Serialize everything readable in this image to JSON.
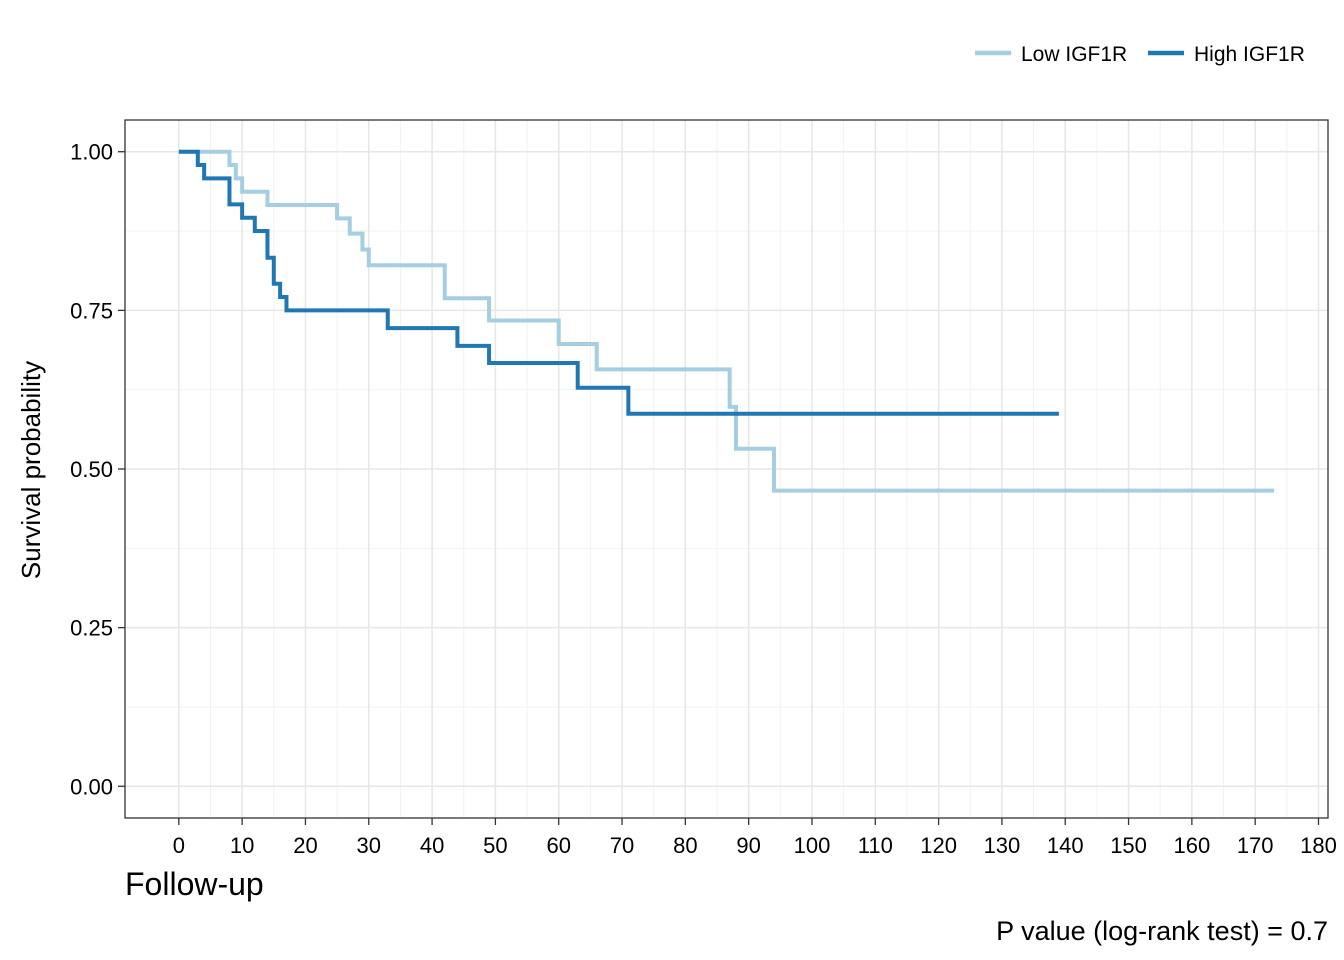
{
  "chart_data": {
    "type": "line",
    "subtype": "kaplan-meier step",
    "xlabel": "Follow-up",
    "ylabel": "Survival probability",
    "xlim": [
      -8.5,
      181.5
    ],
    "ylim": [
      -0.05,
      1.05
    ],
    "x_ticks": [
      0,
      10,
      20,
      30,
      40,
      50,
      60,
      70,
      80,
      90,
      100,
      110,
      120,
      130,
      140,
      150,
      160,
      170,
      180
    ],
    "x_tick_labels": [
      "0",
      "10",
      "20",
      "30",
      "40",
      "50",
      "60",
      "70",
      "80",
      "90",
      "100",
      "110",
      "120",
      "130",
      "140",
      "150",
      "160",
      "170",
      "180"
    ],
    "y_ticks": [
      0,
      0.25,
      0.5,
      0.75,
      1.0
    ],
    "y_tick_labels": [
      "0.00",
      "0.25",
      "0.50",
      "0.75",
      "1.00"
    ],
    "grid": true,
    "legend_position": "top-right",
    "annotation": "P value (log-rank test) = 0.7",
    "series": [
      {
        "name": "Low IGF1R",
        "color": "#a6cee3",
        "x": [
          0,
          8,
          9,
          10,
          14,
          25,
          27,
          29,
          30,
          42,
          49,
          60,
          66,
          87,
          88,
          94,
          173
        ],
        "y": [
          1.0,
          0.979,
          0.958,
          0.937,
          0.916,
          0.895,
          0.871,
          0.846,
          0.821,
          0.769,
          0.734,
          0.697,
          0.657,
          0.598,
          0.532,
          0.466,
          0.466
        ]
      },
      {
        "name": "High IGF1R",
        "color": "#1f78b4",
        "x": [
          0,
          3,
          4,
          8,
          10,
          12,
          14,
          15,
          16,
          17,
          33,
          44,
          49,
          63,
          71,
          139
        ],
        "y": [
          1.0,
          0.979,
          0.958,
          0.917,
          0.896,
          0.875,
          0.833,
          0.792,
          0.771,
          0.75,
          0.722,
          0.694,
          0.667,
          0.628,
          0.587,
          0.587
        ]
      }
    ]
  }
}
